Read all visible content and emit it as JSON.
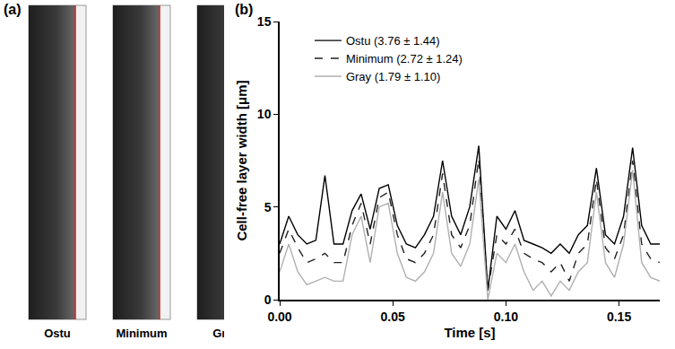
{
  "figure": {
    "panels": [
      {
        "label": "(a)",
        "captions": [
          "Ostu",
          "Minimum",
          "Gray"
        ]
      },
      {
        "label": "(b)"
      }
    ]
  },
  "chart_data": {
    "type": "line",
    "x_label": "Time [s]",
    "y_label": "Cell-free layer width [μm]",
    "x": [
      0,
      0.004,
      0.008,
      0.012,
      0.016,
      0.02,
      0.024,
      0.028,
      0.032,
      0.036,
      0.04,
      0.044,
      0.048,
      0.052,
      0.056,
      0.06,
      0.064,
      0.068,
      0.072,
      0.076,
      0.08,
      0.084,
      0.088,
      0.092,
      0.096,
      0.1,
      0.104,
      0.108,
      0.112,
      0.116,
      0.12,
      0.124,
      0.128,
      0.132,
      0.136,
      0.14,
      0.144,
      0.148,
      0.152,
      0.156,
      0.16,
      0.164,
      0.168
    ],
    "series": [
      {
        "name": "Ostu (3.76 ± 1.44)",
        "color": "#000000",
        "line_style": "solid",
        "values": [
          3.0,
          4.5,
          3.5,
          3.0,
          3.2,
          6.7,
          3.0,
          3.0,
          4.8,
          5.7,
          3.8,
          6.0,
          6.2,
          4.0,
          3.0,
          2.8,
          3.5,
          4.5,
          7.5,
          4.5,
          3.5,
          5.0,
          8.3,
          0.5,
          4.5,
          3.8,
          4.8,
          3.2,
          3.0,
          2.8,
          2.5,
          3.0,
          2.5,
          3.5,
          4.0,
          7.1,
          3.5,
          3.0,
          4.5,
          8.2,
          4.0,
          3.0,
          3.0
        ]
      },
      {
        "name": "Minimum (2.72 ± 1.24)",
        "color": "#222222",
        "line_style": "dashed",
        "values": [
          2.5,
          3.8,
          2.8,
          2.0,
          2.2,
          2.5,
          2.0,
          2.0,
          4.0,
          5.2,
          3.0,
          5.5,
          5.8,
          3.5,
          2.2,
          2.0,
          2.5,
          3.5,
          6.8,
          3.5,
          2.8,
          4.0,
          7.6,
          0.5,
          3.5,
          3.0,
          3.8,
          2.5,
          2.2,
          2.0,
          1.5,
          2.0,
          1.0,
          2.5,
          3.0,
          6.5,
          2.8,
          2.2,
          3.5,
          7.5,
          3.0,
          2.2,
          2.0
        ]
      },
      {
        "name": "Gray (1.79 ± 1.10)",
        "color": "#b0b0b0",
        "line_style": "solid",
        "values": [
          1.5,
          3.0,
          1.5,
          0.8,
          1.0,
          1.2,
          1.0,
          1.0,
          3.5,
          4.5,
          2.0,
          5.0,
          5.2,
          2.5,
          1.2,
          1.0,
          1.5,
          2.5,
          5.8,
          2.5,
          1.8,
          3.0,
          6.5,
          0.0,
          2.5,
          2.0,
          3.0,
          1.5,
          0.5,
          1.0,
          0.2,
          1.0,
          0.5,
          1.5,
          2.0,
          5.8,
          2.0,
          1.2,
          3.0,
          7.0,
          2.0,
          1.2,
          1.0
        ]
      }
    ],
    "xlim": [
      0,
      0.168
    ],
    "xticks": [
      {
        "value": 0,
        "label": "0.00"
      },
      {
        "value": 0.05,
        "label": "0.05"
      },
      {
        "value": 0.1,
        "label": "0.10"
      },
      {
        "value": 0.15,
        "label": "0.15"
      }
    ],
    "ylim": [
      0,
      15
    ],
    "yticks": [
      0,
      5,
      10,
      15
    ],
    "grid": false,
    "legend": "top-left"
  }
}
